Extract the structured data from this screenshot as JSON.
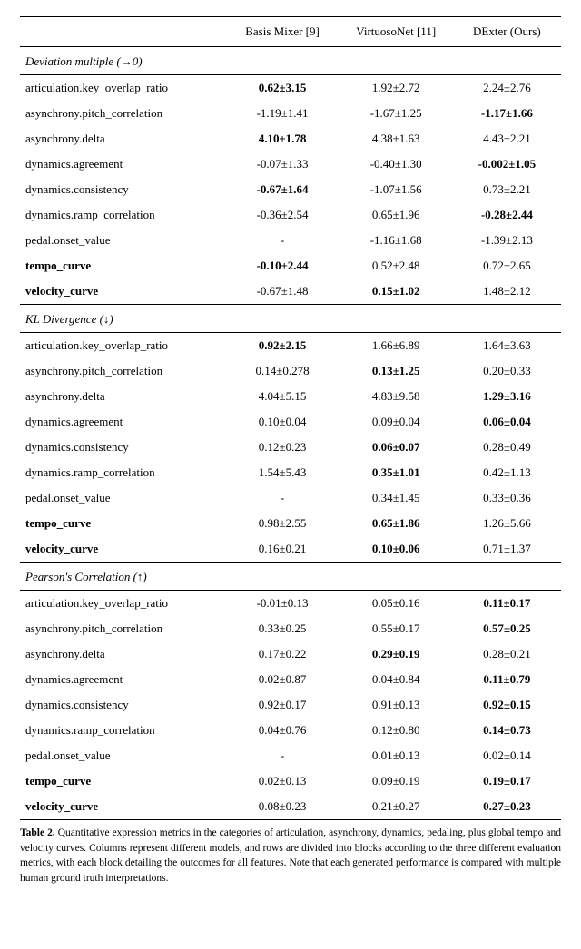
{
  "columns": [
    "",
    "Basis Mixer [9]",
    "VirtuosoNet [11]",
    "DExter (Ours)"
  ],
  "sections": [
    {
      "title": "Deviation multiple (→0)",
      "rows": [
        {
          "label": "articulation.key_overlap_ratio",
          "label_bold": false,
          "cells": [
            {
              "text": "0.62±3.15",
              "bold": true
            },
            {
              "text": "1.92±2.72",
              "bold": false
            },
            {
              "text": "2.24±2.76",
              "bold": false
            }
          ]
        },
        {
          "label": "asynchrony.pitch_correlation",
          "label_bold": false,
          "cells": [
            {
              "text": "-1.19±1.41",
              "bold": false
            },
            {
              "text": "-1.67±1.25",
              "bold": false
            },
            {
              "text": "-1.17±1.66",
              "bold": true
            }
          ]
        },
        {
          "label": "asynchrony.delta",
          "label_bold": false,
          "cells": [
            {
              "text": "4.10±1.78",
              "bold": true
            },
            {
              "text": "4.38±1.63",
              "bold": false
            },
            {
              "text": "4.43±2.21",
              "bold": false
            }
          ]
        },
        {
          "label": "dynamics.agreement",
          "label_bold": false,
          "cells": [
            {
              "text": "-0.07±1.33",
              "bold": false
            },
            {
              "text": "-0.40±1.30",
              "bold": false
            },
            {
              "text": "-0.002±1.05",
              "bold": true
            }
          ]
        },
        {
          "label": "dynamics.consistency",
          "label_bold": false,
          "cells": [
            {
              "text": "-0.67±1.64",
              "bold": true
            },
            {
              "text": "-1.07±1.56",
              "bold": false
            },
            {
              "text": "0.73±2.21",
              "bold": false
            }
          ]
        },
        {
          "label": "dynamics.ramp_correlation",
          "label_bold": false,
          "cells": [
            {
              "text": "-0.36±2.54",
              "bold": false
            },
            {
              "text": "0.65±1.96",
              "bold": false
            },
            {
              "text": "-0.28±2.44",
              "bold": true
            }
          ]
        },
        {
          "label": "pedal.onset_value",
          "label_bold": false,
          "cells": [
            {
              "text": "-",
              "bold": false
            },
            {
              "text": "-1.16±1.68",
              "bold": false
            },
            {
              "text": "-1.39±2.13",
              "bold": false
            }
          ]
        },
        {
          "label": "tempo_curve",
          "label_bold": true,
          "cells": [
            {
              "text": "-0.10±2.44",
              "bold": true
            },
            {
              "text": "0.52±2.48",
              "bold": false
            },
            {
              "text": "0.72±2.65",
              "bold": false
            }
          ]
        },
        {
          "label": "velocity_curve",
          "label_bold": true,
          "cells": [
            {
              "text": "-0.67±1.48",
              "bold": false
            },
            {
              "text": "0.15±1.02",
              "bold": true
            },
            {
              "text": "1.48±2.12",
              "bold": false
            }
          ]
        }
      ]
    },
    {
      "title": "KL Divergence (↓)",
      "rows": [
        {
          "label": "articulation.key_overlap_ratio",
          "label_bold": false,
          "cells": [
            {
              "text": "0.92±2.15",
              "bold": true
            },
            {
              "text": "1.66±6.89",
              "bold": false
            },
            {
              "text": "1.64±3.63",
              "bold": false
            }
          ]
        },
        {
          "label": "asynchrony.pitch_correlation",
          "label_bold": false,
          "cells": [
            {
              "text": "0.14±0.278",
              "bold": false
            },
            {
              "text": "0.13±1.25",
              "bold": true
            },
            {
              "text": "0.20±0.33",
              "bold": false
            }
          ]
        },
        {
          "label": "asynchrony.delta",
          "label_bold": false,
          "cells": [
            {
              "text": "4.04±5.15",
              "bold": false
            },
            {
              "text": "4.83±9.58",
              "bold": false
            },
            {
              "text": "1.29±3.16",
              "bold": true
            }
          ]
        },
        {
          "label": "dynamics.agreement",
          "label_bold": false,
          "cells": [
            {
              "text": "0.10±0.04",
              "bold": false
            },
            {
              "text": "0.09±0.04",
              "bold": false
            },
            {
              "text": "0.06±0.04",
              "bold": true
            }
          ]
        },
        {
          "label": "dynamics.consistency",
          "label_bold": false,
          "cells": [
            {
              "text": "0.12±0.23",
              "bold": false
            },
            {
              "text": "0.06±0.07",
              "bold": true
            },
            {
              "text": "0.28±0.49",
              "bold": false
            }
          ]
        },
        {
          "label": "dynamics.ramp_correlation",
          "label_bold": false,
          "cells": [
            {
              "text": "1.54±5.43",
              "bold": false
            },
            {
              "text": "0.35±1.01",
              "bold": true
            },
            {
              "text": "0.42±1.13",
              "bold": false
            }
          ]
        },
        {
          "label": "pedal.onset_value",
          "label_bold": false,
          "cells": [
            {
              "text": "-",
              "bold": false
            },
            {
              "text": "0.34±1.45",
              "bold": false
            },
            {
              "text": "0.33±0.36",
              "bold": false
            }
          ]
        },
        {
          "label": "tempo_curve",
          "label_bold": true,
          "cells": [
            {
              "text": "0.98±2.55",
              "bold": false
            },
            {
              "text": "0.65±1.86",
              "bold": true
            },
            {
              "text": "1.26±5.66",
              "bold": false
            }
          ]
        },
        {
          "label": "velocity_curve",
          "label_bold": true,
          "cells": [
            {
              "text": "0.16±0.21",
              "bold": false
            },
            {
              "text": "0.10±0.06",
              "bold": true
            },
            {
              "text": "0.71±1.37",
              "bold": false
            }
          ]
        }
      ]
    },
    {
      "title": "Pearson's Correlation (↑)",
      "rows": [
        {
          "label": "articulation.key_overlap_ratio",
          "label_bold": false,
          "cells": [
            {
              "text": "-0.01±0.13",
              "bold": false
            },
            {
              "text": "0.05±0.16",
              "bold": false
            },
            {
              "text": "0.11±0.17",
              "bold": true
            }
          ]
        },
        {
          "label": "asynchrony.pitch_correlation",
          "label_bold": false,
          "cells": [
            {
              "text": "0.33±0.25",
              "bold": false
            },
            {
              "text": "0.55±0.17",
              "bold": false
            },
            {
              "text": "0.57±0.25",
              "bold": true
            }
          ]
        },
        {
          "label": "asynchrony.delta",
          "label_bold": false,
          "cells": [
            {
              "text": "0.17±0.22",
              "bold": false
            },
            {
              "text": "0.29±0.19",
              "bold": true
            },
            {
              "text": "0.28±0.21",
              "bold": false
            }
          ]
        },
        {
          "label": "dynamics.agreement",
          "label_bold": false,
          "cells": [
            {
              "text": "0.02±0.87",
              "bold": false
            },
            {
              "text": "0.04±0.84",
              "bold": false
            },
            {
              "text": "0.11±0.79",
              "bold": true
            }
          ]
        },
        {
          "label": "dynamics.consistency",
          "label_bold": false,
          "cells": [
            {
              "text": "0.92±0.17",
              "bold": false
            },
            {
              "text": "0.91±0.13",
              "bold": false
            },
            {
              "text": "0.92±0.15",
              "bold": true
            }
          ]
        },
        {
          "label": "dynamics.ramp_correlation",
          "label_bold": false,
          "cells": [
            {
              "text": "0.04±0.76",
              "bold": false
            },
            {
              "text": "0.12±0.80",
              "bold": false
            },
            {
              "text": "0.14±0.73",
              "bold": true
            }
          ]
        },
        {
          "label": "pedal.onset_value",
          "label_bold": false,
          "cells": [
            {
              "text": "-",
              "bold": false
            },
            {
              "text": "0.01±0.13",
              "bold": false
            },
            {
              "text": "0.02±0.14",
              "bold": false
            }
          ]
        },
        {
          "label": "tempo_curve",
          "label_bold": true,
          "cells": [
            {
              "text": "0.02±0.13",
              "bold": false
            },
            {
              "text": "0.09±0.19",
              "bold": false
            },
            {
              "text": "0.19±0.17",
              "bold": true
            }
          ]
        },
        {
          "label": "velocity_curve",
          "label_bold": true,
          "cells": [
            {
              "text": "0.08±0.23",
              "bold": false
            },
            {
              "text": "0.21±0.27",
              "bold": false
            },
            {
              "text": "0.27±0.23",
              "bold": true
            }
          ]
        }
      ]
    }
  ],
  "caption_label": "Table 2.",
  "caption_text": "Quantitative expression metrics in the categories of articulation, asynchrony, dynamics, pedaling, plus global tempo and velocity curves. Columns represent different models, and rows are divided into blocks according to the three different evaluation metrics, with each block detailing the outcomes for all features. Note that each generated performance is compared with multiple human ground truth interpretations.",
  "layout": {
    "col_widths_pct": [
      38,
      21,
      21,
      20
    ],
    "font_family": "Palatino Linotype",
    "font_size_pt": 13,
    "caption_font_size_pt": 11.5,
    "rule_color": "#000000",
    "background_color": "#ffffff"
  }
}
